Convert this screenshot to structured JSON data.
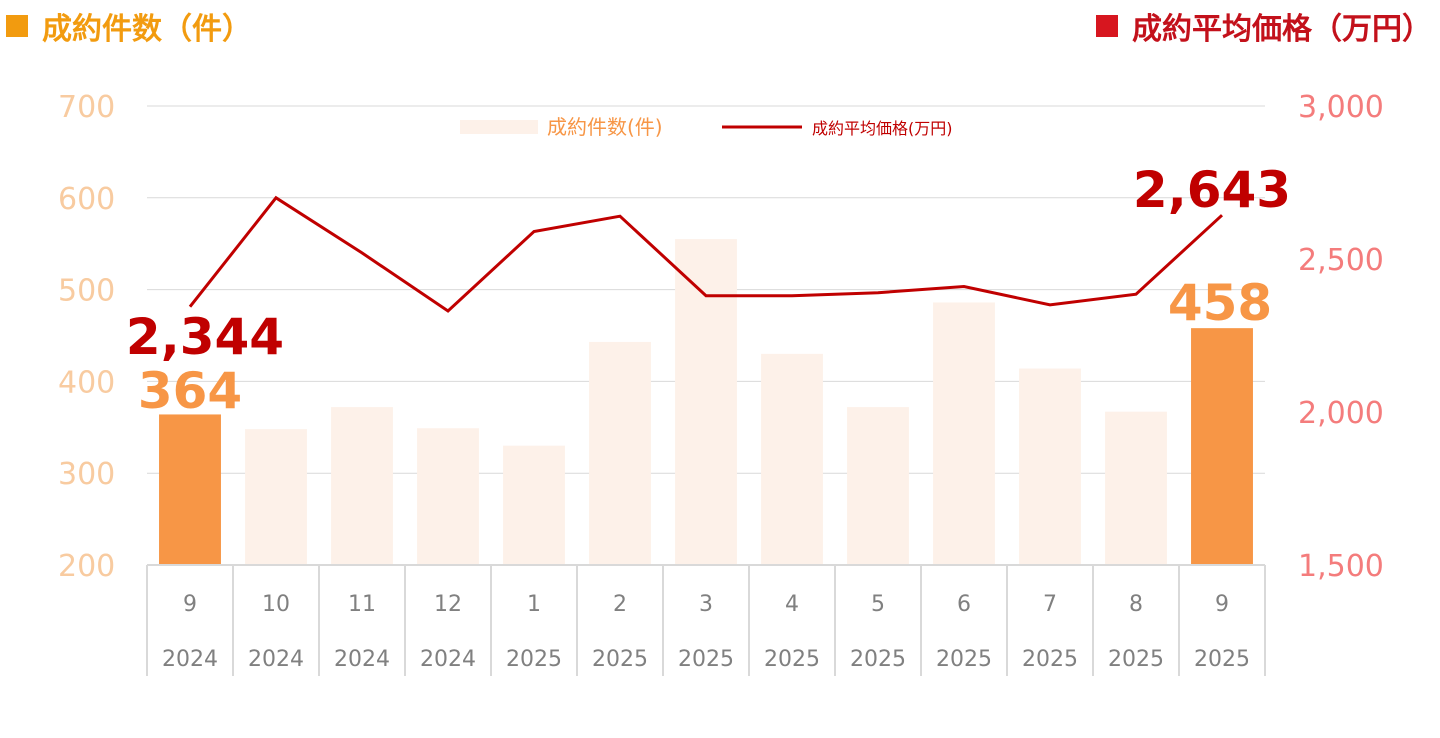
{
  "header": {
    "left_title": "成約件数（件）",
    "right_title": "成約平均価格（万円）"
  },
  "colors": {
    "bar_normal": "#fdf1e9",
    "bar_highlight": "#f79646",
    "line": "#c00000",
    "left_axis_text": "#f8cba0",
    "right_axis_text": "#f47c7c",
    "left_title": "#f29b0f",
    "right_title": "#c3111b",
    "grid": "#d9d9d9",
    "tick_text": "#808080"
  },
  "chart_data": {
    "type": "bar",
    "categories": [
      {
        "month": "9",
        "year": "2024"
      },
      {
        "month": "10",
        "year": "2024"
      },
      {
        "month": "11",
        "year": "2024"
      },
      {
        "month": "12",
        "year": "2024"
      },
      {
        "month": "1",
        "year": "2025"
      },
      {
        "month": "2",
        "year": "2025"
      },
      {
        "month": "3",
        "year": "2025"
      },
      {
        "month": "4",
        "year": "2025"
      },
      {
        "month": "5",
        "year": "2025"
      },
      {
        "month": "6",
        "year": "2025"
      },
      {
        "month": "7",
        "year": "2025"
      },
      {
        "month": "8",
        "year": "2025"
      },
      {
        "month": "9",
        "year": "2025"
      }
    ],
    "series": [
      {
        "name": "成約件数(件)",
        "type": "bar",
        "axis": "left",
        "values": [
          364,
          348,
          372,
          349,
          330,
          443,
          555,
          430,
          372,
          486,
          414,
          367,
          458
        ],
        "highlight": [
          0,
          12
        ]
      },
      {
        "name": "成約平均価格(万円)",
        "type": "line",
        "axis": "right",
        "values": [
          2344,
          2700,
          2520,
          2330,
          2590,
          2640,
          2380,
          2380,
          2390,
          2410,
          2350,
          2385,
          2643
        ]
      }
    ],
    "left_axis": {
      "min": 200,
      "max": 700,
      "ticks": [
        "200",
        "300",
        "400",
        "500",
        "600",
        "700"
      ]
    },
    "right_axis": {
      "min": 1500,
      "max": 3000,
      "ticks": [
        "1,500",
        "2,000",
        "2,500",
        "3,000"
      ]
    },
    "annotations": {
      "bar_first": "364",
      "bar_last": "458",
      "line_first": "2,344",
      "line_last": "2,643"
    },
    "legend": {
      "position": "top-center",
      "bar_label": "成約件数(件)",
      "line_label": "成約平均価格(万円)"
    },
    "grid": true
  }
}
